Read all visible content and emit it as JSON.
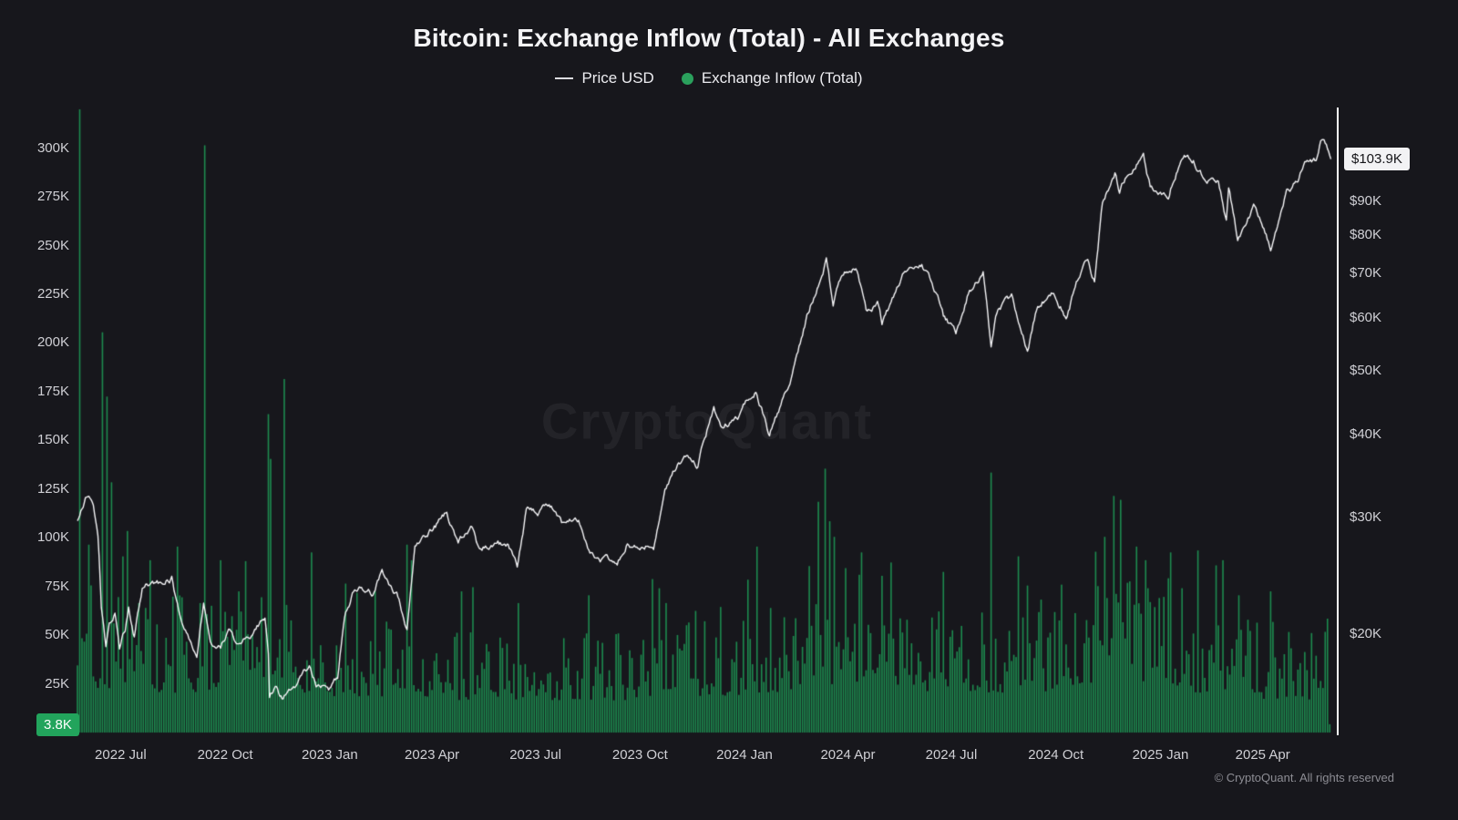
{
  "chart_data": {
    "type": "mixed",
    "title": "Bitcoin: Exchange Inflow (Total) - All Exchanges",
    "legend_items": [
      {
        "label": "Price USD",
        "marker": "line",
        "color": "#dcdce0"
      },
      {
        "label": "Exchange Inflow (Total)",
        "marker": "dot",
        "color": "#2aa05c"
      }
    ],
    "x_domain": [
      "2022-05-24",
      "2025-06-06"
    ],
    "x_ticks": [
      [
        "2022 Jul",
        "2022-07-01"
      ],
      [
        "2022 Oct",
        "2022-10-01"
      ],
      [
        "2023 Jan",
        "2023-01-01"
      ],
      [
        "2023 Apr",
        "2023-04-01"
      ],
      [
        "2023 Jul",
        "2023-07-01"
      ],
      [
        "2023 Oct",
        "2023-10-01"
      ],
      [
        "2024 Jan",
        "2024-01-01"
      ],
      [
        "2024 Apr",
        "2024-04-01"
      ],
      [
        "2024 Jul",
        "2024-07-01"
      ],
      [
        "2024 Oct",
        "2024-10-01"
      ],
      [
        "2025 Jan",
        "2025-01-01"
      ],
      [
        "2025 Apr",
        "2025-04-01"
      ]
    ],
    "left_axis": {
      "title": "Exchange Inflow (Total)",
      "scale": "linear",
      "unit": "BTC",
      "range": [
        0,
        319000
      ],
      "ticks": [
        [
          "300K",
          300000
        ],
        [
          "275K",
          275000
        ],
        [
          "250K",
          250000
        ],
        [
          "225K",
          225000
        ],
        [
          "200K",
          200000
        ],
        [
          "175K",
          175000
        ],
        [
          "150K",
          150000
        ],
        [
          "125K",
          125000
        ],
        [
          "100K",
          100000
        ],
        [
          "75K",
          75000
        ],
        [
          "50K",
          50000
        ],
        [
          "25K",
          25000
        ]
      ],
      "current_value": 3800,
      "current_value_label": "3.8K",
      "badge_color": "#22a45c"
    },
    "right_axis": {
      "title": "Price USD",
      "scale": "log",
      "unit": "USD",
      "ticks": [
        [
          "$90K",
          90000
        ],
        [
          "$80K",
          80000
        ],
        [
          "$70K",
          70000
        ],
        [
          "$60K",
          60000
        ],
        [
          "$50K",
          50000
        ],
        [
          "$40K",
          40000
        ],
        [
          "$30K",
          30000
        ],
        [
          "$20K",
          20000
        ]
      ],
      "current_value": 103900,
      "current_value_label": "$103.9K",
      "badge_color": "#f2f2f4"
    },
    "series": [
      {
        "name": "Exchange Inflow (Total)",
        "type": "bar",
        "axis": "left",
        "color": "#1d8b4f",
        "baseline_segments": [
          [
            "2022-05-24",
            "2022-08-01",
            22000,
            85000
          ],
          [
            "2022-08-01",
            "2022-11-01",
            20000,
            70000
          ],
          [
            "2022-11-01",
            "2023-01-01",
            20000,
            72000
          ],
          [
            "2023-01-01",
            "2023-04-01",
            18000,
            58000
          ],
          [
            "2023-04-01",
            "2023-10-01",
            16000,
            52000
          ],
          [
            "2023-10-01",
            "2024-01-01",
            18000,
            58000
          ],
          [
            "2024-01-01",
            "2024-03-01",
            20000,
            68000
          ],
          [
            "2024-03-01",
            "2024-05-01",
            24000,
            85000
          ],
          [
            "2024-05-01",
            "2024-08-01",
            20000,
            65000
          ],
          [
            "2024-08-01",
            "2024-10-01",
            20000,
            68000
          ],
          [
            "2024-10-01",
            "2025-01-16",
            24000,
            80000
          ],
          [
            "2025-01-16",
            "2025-04-01",
            20000,
            62000
          ],
          [
            "2025-04-01",
            "2025-05-31",
            16000,
            52000
          ]
        ],
        "spikes": [
          [
            "2022-05-26",
            330000
          ],
          [
            "2022-06-02",
            96000
          ],
          [
            "2022-06-14",
            205000
          ],
          [
            "2022-06-18",
            172000
          ],
          [
            "2022-06-22",
            128000
          ],
          [
            "2022-07-06",
            103000
          ],
          [
            "2022-07-26",
            88000
          ],
          [
            "2022-08-20",
            95000
          ],
          [
            "2022-09-13",
            301000
          ],
          [
            "2022-09-27",
            88000
          ],
          [
            "2022-10-12",
            72000
          ],
          [
            "2022-11-08",
            163000
          ],
          [
            "2022-11-10",
            140000
          ],
          [
            "2022-11-22",
            181000
          ],
          [
            "2022-12-16",
            92000
          ],
          [
            "2023-01-14",
            76000
          ],
          [
            "2023-02-10",
            72000
          ],
          [
            "2023-03-10",
            96000
          ],
          [
            "2023-03-14",
            88000
          ],
          [
            "2023-04-26",
            72000
          ],
          [
            "2023-06-15",
            66000
          ],
          [
            "2023-08-17",
            70000
          ],
          [
            "2023-10-24",
            66000
          ],
          [
            "2023-12-11",
            64000
          ],
          [
            "2024-01-03",
            78000
          ],
          [
            "2024-01-12",
            95000
          ],
          [
            "2024-02-26",
            85000
          ],
          [
            "2024-03-05",
            118000
          ],
          [
            "2024-03-12",
            135000
          ],
          [
            "2024-03-16",
            108000
          ],
          [
            "2024-03-19",
            100000
          ],
          [
            "2024-04-13",
            92000
          ],
          [
            "2024-05-01",
            80000
          ],
          [
            "2024-06-24",
            82000
          ],
          [
            "2024-08-05",
            133000
          ],
          [
            "2024-08-28",
            90000
          ],
          [
            "2024-09-06",
            75000
          ],
          [
            "2024-11-12",
            100000
          ],
          [
            "2024-11-20",
            121000
          ],
          [
            "2024-11-26",
            119000
          ],
          [
            "2024-12-10",
            95000
          ],
          [
            "2024-12-19",
            88000
          ],
          [
            "2025-01-09",
            92000
          ],
          [
            "2025-02-03",
            93000
          ],
          [
            "2025-02-25",
            88000
          ],
          [
            "2025-03-11",
            70000
          ],
          [
            "2025-04-07",
            72000
          ],
          [
            "2025-05-31",
            3800
          ]
        ]
      },
      {
        "name": "Price USD",
        "type": "line",
        "axis": "right",
        "color": "#f5f5f7",
        "keypoints": [
          [
            "2022-05-24",
            29600
          ],
          [
            "2022-05-31",
            31700
          ],
          [
            "2022-06-07",
            31300
          ],
          [
            "2022-06-11",
            28400
          ],
          [
            "2022-06-14",
            22100
          ],
          [
            "2022-06-18",
            18900
          ],
          [
            "2022-06-21",
            20700
          ],
          [
            "2022-06-26",
            21500
          ],
          [
            "2022-06-30",
            19000
          ],
          [
            "2022-07-05",
            20200
          ],
          [
            "2022-07-08",
            21800
          ],
          [
            "2022-07-13",
            19900
          ],
          [
            "2022-07-20",
            23300
          ],
          [
            "2022-07-29",
            23800
          ],
          [
            "2022-08-08",
            23900
          ],
          [
            "2022-08-15",
            24300
          ],
          [
            "2022-08-21",
            21500
          ],
          [
            "2022-08-28",
            19900
          ],
          [
            "2022-09-06",
            18800
          ],
          [
            "2022-09-12",
            22300
          ],
          [
            "2022-09-19",
            19500
          ],
          [
            "2022-09-27",
            19100
          ],
          [
            "2022-10-04",
            20300
          ],
          [
            "2022-10-13",
            19200
          ],
          [
            "2022-10-25",
            20100
          ],
          [
            "2022-11-05",
            21300
          ],
          [
            "2022-11-08",
            18500
          ],
          [
            "2022-11-09",
            15900
          ],
          [
            "2022-11-14",
            16600
          ],
          [
            "2022-11-21",
            15800
          ],
          [
            "2022-12-05",
            17000
          ],
          [
            "2022-12-14",
            17800
          ],
          [
            "2022-12-20",
            16800
          ],
          [
            "2022-12-31",
            16500
          ],
          [
            "2023-01-08",
            17100
          ],
          [
            "2023-01-14",
            20900
          ],
          [
            "2023-01-21",
            22700
          ],
          [
            "2023-01-29",
            23700
          ],
          [
            "2023-02-08",
            22900
          ],
          [
            "2023-02-16",
            24600
          ],
          [
            "2023-02-24",
            23200
          ],
          [
            "2023-03-03",
            22400
          ],
          [
            "2023-03-10",
            20200
          ],
          [
            "2023-03-17",
            27400
          ],
          [
            "2023-03-22",
            28100
          ],
          [
            "2023-03-29",
            28400
          ],
          [
            "2023-04-10",
            29900
          ],
          [
            "2023-04-14",
            30500
          ],
          [
            "2023-04-24",
            27300
          ],
          [
            "2023-05-06",
            28900
          ],
          [
            "2023-05-12",
            26800
          ],
          [
            "2023-05-23",
            27200
          ],
          [
            "2023-06-06",
            27200
          ],
          [
            "2023-06-15",
            25100
          ],
          [
            "2023-06-23",
            30700
          ],
          [
            "2023-07-03",
            30600
          ],
          [
            "2023-07-13",
            31500
          ],
          [
            "2023-07-24",
            29200
          ],
          [
            "2023-08-08",
            29800
          ],
          [
            "2023-08-17",
            26600
          ],
          [
            "2023-08-25",
            26000
          ],
          [
            "2023-09-11",
            25200
          ],
          [
            "2023-09-19",
            27200
          ],
          [
            "2023-10-03",
            27400
          ],
          [
            "2023-10-13",
            26800
          ],
          [
            "2023-10-23",
            33100
          ],
          [
            "2023-11-02",
            35400
          ],
          [
            "2023-11-09",
            36700
          ],
          [
            "2023-11-21",
            35800
          ],
          [
            "2023-12-05",
            44000
          ],
          [
            "2023-12-11",
            41300
          ],
          [
            "2023-12-26",
            42500
          ],
          [
            "2024-01-02",
            45000
          ],
          [
            "2024-01-11",
            46300
          ],
          [
            "2024-01-23",
            39900
          ],
          [
            "2024-02-09",
            47100
          ],
          [
            "2024-02-15",
            52000
          ],
          [
            "2024-02-28",
            62400
          ],
          [
            "2024-03-08",
            68300
          ],
          [
            "2024-03-13",
            73100
          ],
          [
            "2024-03-19",
            61900
          ],
          [
            "2024-03-27",
            69400
          ],
          [
            "2024-04-08",
            71600
          ],
          [
            "2024-04-17",
            61300
          ],
          [
            "2024-04-27",
            63100
          ],
          [
            "2024-05-01",
            58300
          ],
          [
            "2024-05-15",
            66300
          ],
          [
            "2024-05-21",
            71400
          ],
          [
            "2024-06-05",
            71100
          ],
          [
            "2024-06-18",
            65100
          ],
          [
            "2024-06-24",
            60300
          ],
          [
            "2024-07-05",
            56600
          ],
          [
            "2024-07-15",
            64800
          ],
          [
            "2024-07-29",
            69600
          ],
          [
            "2024-08-05",
            54000
          ],
          [
            "2024-08-09",
            60900
          ],
          [
            "2024-08-23",
            64100
          ],
          [
            "2024-09-06",
            53900
          ],
          [
            "2024-09-13",
            60500
          ],
          [
            "2024-09-27",
            65700
          ],
          [
            "2024-10-10",
            60300
          ],
          [
            "2024-10-21",
            69000
          ],
          [
            "2024-10-29",
            72700
          ],
          [
            "2024-11-04",
            68000
          ],
          [
            "2024-11-11",
            88700
          ],
          [
            "2024-11-22",
            99000
          ],
          [
            "2024-11-26",
            91900
          ],
          [
            "2024-12-05",
            99900
          ],
          [
            "2024-12-17",
            106100
          ],
          [
            "2024-12-23",
            94300
          ],
          [
            "2024-12-30",
            92600
          ],
          [
            "2025-01-09",
            92500
          ],
          [
            "2025-01-20",
            106100
          ],
          [
            "2025-01-30",
            104700
          ],
          [
            "2025-02-09",
            96500
          ],
          [
            "2025-02-21",
            96100
          ],
          [
            "2025-02-28",
            84300
          ],
          [
            "2025-03-02",
            94200
          ],
          [
            "2025-03-10",
            78600
          ],
          [
            "2025-03-24",
            87500
          ],
          [
            "2025-03-31",
            82500
          ],
          [
            "2025-04-08",
            76300
          ],
          [
            "2025-04-22",
            93400
          ],
          [
            "2025-05-01",
            96500
          ],
          [
            "2025-05-09",
            102900
          ],
          [
            "2025-05-18",
            104000
          ],
          [
            "2025-05-22",
            110800
          ],
          [
            "2025-05-27",
            109000
          ],
          [
            "2025-05-31",
            103900
          ]
        ]
      }
    ]
  },
  "watermark": "CryptoQuant",
  "footer": "© CryptoQuant. All rights reserved"
}
